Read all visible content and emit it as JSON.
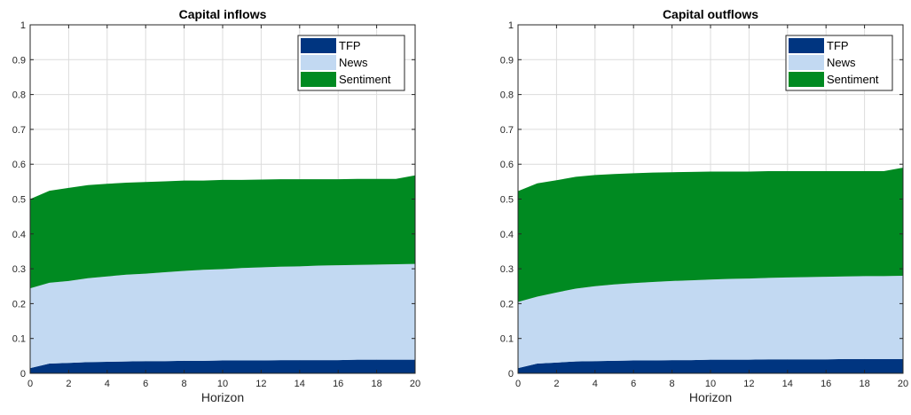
{
  "chart_data": [
    {
      "type": "area",
      "title": "Capital inflows",
      "xlabel": "Horizon",
      "ylabel": "",
      "xlim": [
        0,
        20
      ],
      "ylim": [
        0,
        1
      ],
      "x_ticks": [
        "0",
        "2",
        "4",
        "6",
        "8",
        "10",
        "12",
        "14",
        "16",
        "18",
        "20"
      ],
      "y_ticks": [
        "0",
        "0.1",
        "0.2",
        "0.3",
        "0.4",
        "0.5",
        "0.6",
        "0.7",
        "0.8",
        "0.9",
        "1"
      ],
      "grid": true,
      "legend": "top-right",
      "stacked": true,
      "x": [
        0,
        1,
        2,
        3,
        4,
        5,
        6,
        7,
        8,
        9,
        10,
        11,
        12,
        13,
        14,
        15,
        16,
        17,
        18,
        19,
        20
      ],
      "series": [
        {
          "name": "TFP",
          "color": "#003580",
          "values": [
            0.015,
            0.028,
            0.03,
            0.032,
            0.033,
            0.034,
            0.035,
            0.035,
            0.036,
            0.036,
            0.037,
            0.037,
            0.037,
            0.038,
            0.038,
            0.038,
            0.038,
            0.039,
            0.039,
            0.039,
            0.039
          ]
        },
        {
          "name": "News",
          "color": "#c2d9f2",
          "values": [
            0.229,
            0.232,
            0.235,
            0.241,
            0.245,
            0.249,
            0.251,
            0.255,
            0.258,
            0.261,
            0.262,
            0.265,
            0.267,
            0.268,
            0.269,
            0.271,
            0.272,
            0.272,
            0.273,
            0.274,
            0.275
          ]
        },
        {
          "name": "Sentiment",
          "color": "#008a21",
          "values": [
            0.256,
            0.264,
            0.267,
            0.267,
            0.266,
            0.264,
            0.263,
            0.261,
            0.259,
            0.256,
            0.256,
            0.253,
            0.252,
            0.251,
            0.25,
            0.248,
            0.247,
            0.247,
            0.246,
            0.245,
            0.254
          ]
        }
      ]
    },
    {
      "type": "area",
      "title": "Capital outflows",
      "xlabel": "Horizon",
      "ylabel": "",
      "xlim": [
        0,
        20
      ],
      "ylim": [
        0,
        1
      ],
      "x_ticks": [
        "0",
        "2",
        "4",
        "6",
        "8",
        "10",
        "12",
        "14",
        "16",
        "18",
        "20"
      ],
      "y_ticks": [
        "0",
        "0.1",
        "0.2",
        "0.3",
        "0.4",
        "0.5",
        "0.6",
        "0.7",
        "0.8",
        "0.9",
        "1"
      ],
      "grid": true,
      "legend": "top-right",
      "stacked": true,
      "x": [
        0,
        1,
        2,
        3,
        4,
        5,
        6,
        7,
        8,
        9,
        10,
        11,
        12,
        13,
        14,
        15,
        16,
        17,
        18,
        19,
        20
      ],
      "series": [
        {
          "name": "TFP",
          "color": "#003580",
          "values": [
            0.015,
            0.028,
            0.031,
            0.034,
            0.035,
            0.036,
            0.037,
            0.037,
            0.038,
            0.038,
            0.039,
            0.039,
            0.039,
            0.04,
            0.04,
            0.04,
            0.04,
            0.041,
            0.041,
            0.041,
            0.041
          ]
        },
        {
          "name": "News",
          "color": "#c2d9f2",
          "values": [
            0.19,
            0.192,
            0.201,
            0.209,
            0.215,
            0.219,
            0.222,
            0.225,
            0.227,
            0.229,
            0.23,
            0.232,
            0.233,
            0.234,
            0.235,
            0.236,
            0.237,
            0.237,
            0.238,
            0.238,
            0.239
          ]
        },
        {
          "name": "Sentiment",
          "color": "#008a21",
          "values": [
            0.318,
            0.325,
            0.322,
            0.321,
            0.319,
            0.317,
            0.315,
            0.314,
            0.312,
            0.311,
            0.31,
            0.308,
            0.307,
            0.306,
            0.305,
            0.304,
            0.303,
            0.302,
            0.301,
            0.301,
            0.31
          ]
        }
      ]
    }
  ]
}
